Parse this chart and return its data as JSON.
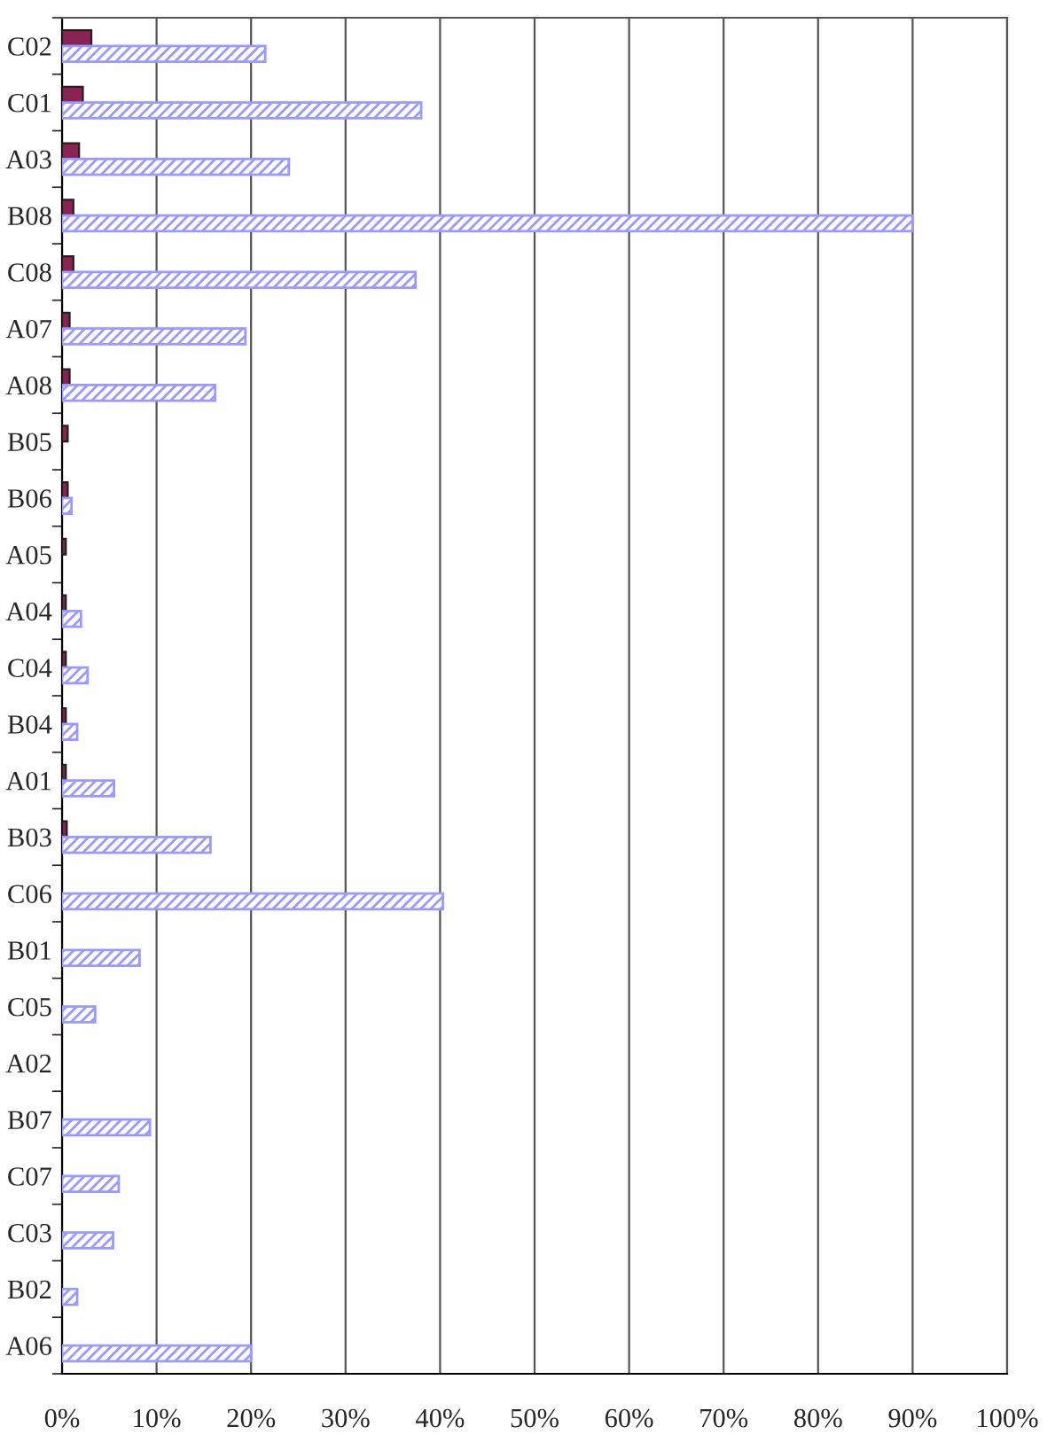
{
  "chart_data": {
    "type": "bar",
    "orientation": "horizontal",
    "categories": [
      "C02",
      "C01",
      "A03",
      "B08",
      "C08",
      "A07",
      "A08",
      "B05",
      "B06",
      "A05",
      "A04",
      "C04",
      "B04",
      "A01",
      "B03",
      "C06",
      "B01",
      "C05",
      "A02",
      "B07",
      "C07",
      "C03",
      "B02",
      "A06"
    ],
    "series": [
      {
        "color": "#8b2252",
        "values": [
          3.1,
          2.2,
          1.8,
          1.2,
          1.2,
          0.8,
          0.8,
          0.6,
          0.6,
          0.4,
          0.4,
          0.4,
          0.4,
          0.4,
          0.5,
          null,
          null,
          null,
          null,
          null,
          null,
          null,
          null,
          null
        ]
      },
      {
        "color": "#9999ff",
        "values": [
          21.5,
          38,
          24,
          90,
          37.4,
          19.4,
          16.2,
          null,
          1,
          null,
          2,
          2.7,
          1.6,
          5.5,
          15.7,
          40.3,
          8.2,
          3.5,
          null,
          9.3,
          6,
          5.4,
          1.6,
          20
        ]
      }
    ],
    "xlim": [
      0,
      100
    ],
    "xticks": [
      {
        "value": 0,
        "label": "0%"
      },
      {
        "value": 10,
        "label": "10%"
      },
      {
        "value": 20,
        "label": "20%"
      },
      {
        "value": 30,
        "label": "30%"
      },
      {
        "value": 40,
        "label": "40%"
      },
      {
        "value": 50,
        "label": "50%"
      },
      {
        "value": 60,
        "label": "60%"
      },
      {
        "value": 70,
        "label": "70%"
      },
      {
        "value": 80,
        "label": "80%"
      },
      {
        "value": 90,
        "label": "90%"
      },
      {
        "value": 100,
        "label": "100%"
      }
    ],
    "grid": "x"
  }
}
